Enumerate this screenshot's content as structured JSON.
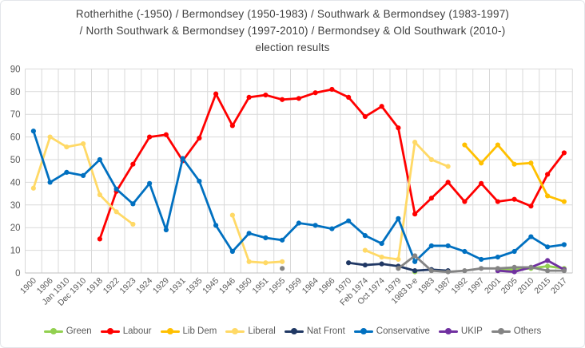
{
  "title": {
    "line1": "Rotherhithe (-1950) / Bermondsey (1950-1983) / Southwark & Bermondsey (1983-1997)",
    "line2": "/ North Southwark & Bermondsey (1997-2010) / Bermondsey & Old Southwark (2010-)",
    "line3": "election results"
  },
  "chart_data": {
    "type": "line",
    "title": "Rotherhithe / Bermondsey / Southwark & Bermondsey / North Southwark & Bermondsey / Bermondsey & Old Southwark election results",
    "ylabel": "",
    "xlabel": "",
    "ylim": [
      0,
      90
    ],
    "y_step": 10,
    "grid": true,
    "legend_position": "bottom",
    "axis_text_color": "#595959",
    "grid_color": "#d9d9d9",
    "axis_line_color": "#bfbfbf",
    "categories": [
      "1900",
      "1906",
      "Jan 1910",
      "Dec 1910",
      "1918",
      "1922",
      "1923",
      "1924",
      "1929",
      "1931",
      "1935",
      "1945",
      "1946",
      "1950",
      "1951",
      "1955",
      "1959",
      "1964",
      "1966",
      "1970",
      "Feb 1974",
      "Oct 1974",
      "1979",
      "1983 b-e",
      "1983",
      "1987",
      "1992",
      "1997",
      "2001",
      "2005",
      "2010",
      "2015",
      "2017"
    ],
    "series": [
      {
        "name": "Green",
        "color": "#92d050",
        "values": [
          null,
          null,
          null,
          null,
          null,
          null,
          null,
          null,
          null,
          null,
          null,
          null,
          null,
          null,
          null,
          null,
          null,
          null,
          null,
          null,
          null,
          null,
          null,
          0.5,
          null,
          null,
          null,
          null,
          1.5,
          1.5,
          2,
          3,
          2
        ]
      },
      {
        "name": "Labour",
        "color": "#ff0000",
        "values": [
          null,
          null,
          null,
          null,
          15,
          36,
          48,
          60,
          61,
          49.5,
          59.5,
          79,
          65,
          77.5,
          78.5,
          76.5,
          77,
          79.5,
          81,
          77.5,
          69,
          73.5,
          64,
          26,
          33,
          40,
          31.5,
          39.5,
          31.5,
          32.5,
          29.5,
          43.5,
          53
        ]
      },
      {
        "name": "Lib Dem",
        "color": "#ffc000",
        "values": [
          null,
          null,
          null,
          null,
          null,
          null,
          null,
          null,
          null,
          null,
          null,
          null,
          null,
          null,
          null,
          null,
          null,
          null,
          null,
          null,
          null,
          null,
          null,
          null,
          null,
          null,
          56.5,
          48.5,
          56.5,
          48,
          48.5,
          34,
          31.5
        ]
      },
      {
        "name": "Liberal",
        "color": "#ffd966",
        "values": [
          37.4,
          60,
          55.6,
          57,
          34.5,
          27,
          21.5,
          null,
          null,
          null,
          null,
          null,
          25.5,
          5,
          4.5,
          5,
          null,
          null,
          null,
          null,
          10,
          7,
          6,
          57.7,
          50,
          47,
          null,
          null,
          null,
          null,
          null,
          null,
          null
        ]
      },
      {
        "name": "Nat Front",
        "color": "#203864",
        "values": [
          null,
          null,
          null,
          null,
          null,
          null,
          null,
          null,
          null,
          null,
          null,
          null,
          null,
          null,
          null,
          null,
          null,
          null,
          null,
          4.5,
          3.5,
          4,
          3,
          1,
          1.5,
          1,
          null,
          null,
          null,
          null,
          null,
          null,
          null
        ]
      },
      {
        "name": "Conservative",
        "color": "#0070c0",
        "values": [
          62.6,
          40,
          44.4,
          43,
          50,
          37,
          30.5,
          39.5,
          19,
          50.5,
          40.5,
          21,
          9.5,
          17.5,
          15.5,
          14.5,
          22,
          21,
          19.5,
          23,
          16.5,
          13,
          24,
          5,
          12,
          12,
          9.5,
          6,
          7,
          9.5,
          16,
          11.5,
          12.5
        ]
      },
      {
        "name": "UKIP",
        "color": "#7030a0",
        "values": [
          null,
          null,
          null,
          null,
          null,
          null,
          null,
          null,
          null,
          null,
          null,
          null,
          null,
          null,
          null,
          null,
          null,
          null,
          null,
          null,
          null,
          null,
          null,
          null,
          null,
          null,
          null,
          null,
          1,
          0.5,
          2.5,
          5.5,
          1.5
        ]
      },
      {
        "name": "Others",
        "color": "#848484",
        "values": [
          null,
          null,
          null,
          null,
          null,
          null,
          null,
          null,
          null,
          null,
          null,
          null,
          null,
          null,
          null,
          2,
          null,
          null,
          null,
          null,
          null,
          null,
          2,
          7.6,
          1,
          0.5,
          1,
          2,
          2,
          2.5,
          2.5,
          1,
          1
        ]
      }
    ]
  }
}
